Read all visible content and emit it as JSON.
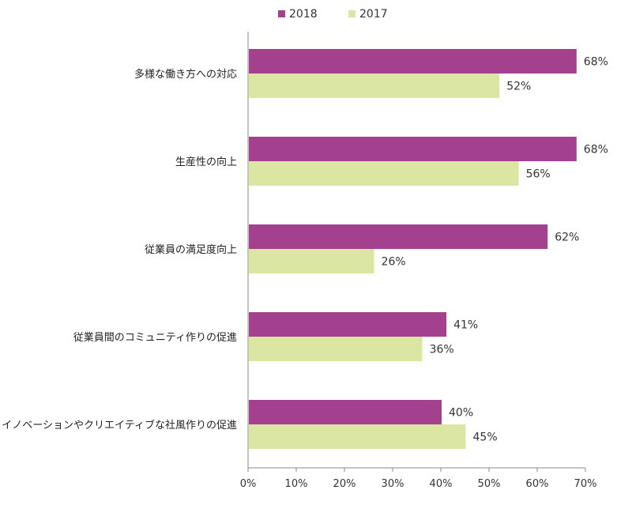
{
  "chart_data": {
    "type": "bar",
    "orientation": "horizontal",
    "categories": [
      "多様な働き方への対応",
      "生産性の向上",
      "従業員の満足度向上",
      "従業員間のコミュニティ作りの促進",
      "イノベーションやクリエイティブな社風作りの促進"
    ],
    "series": [
      {
        "name": "2018",
        "values": [
          68,
          68,
          62,
          41,
          40
        ],
        "labels": [
          "68%",
          "68%",
          "62%",
          "41%",
          "40%"
        ],
        "color": "#a3418f"
      },
      {
        "name": "2017",
        "values": [
          52,
          56,
          26,
          36,
          45
        ],
        "labels": [
          "52%",
          "56%",
          "26%",
          "36%",
          "45%"
        ],
        "color": "#dbe6a2"
      }
    ],
    "xlim": [
      0,
      70
    ],
    "xticks": [
      "0%",
      "10%",
      "20%",
      "30%",
      "40%",
      "50%",
      "60%",
      "70%"
    ],
    "grid": false,
    "legend": "top-center"
  }
}
